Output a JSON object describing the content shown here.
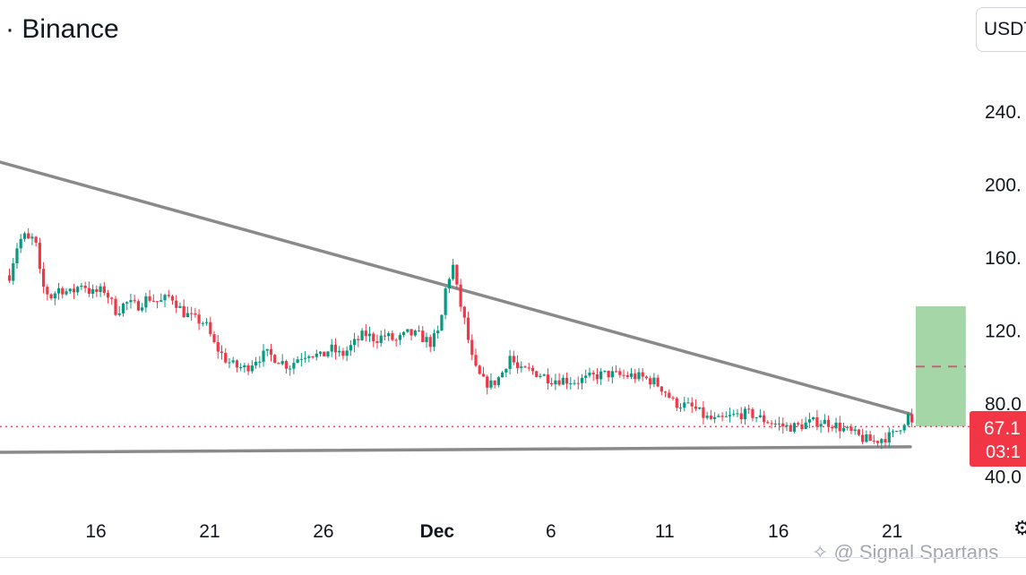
{
  "header": {
    "title": "· Binance",
    "currency": "USDT"
  },
  "price_badge": {
    "price": "67.1",
    "countdown": "03:1"
  },
  "watermark": {
    "text": "@ Signal Spartans"
  },
  "icons": {
    "settings": "gear-icon",
    "watermark_logo": "logo-icon"
  },
  "colors": {
    "up": "#089981",
    "down": "#f23645",
    "trendline": "#8a8a8a",
    "target_zone": "#a5d6a7",
    "current_price_line": "#f23645"
  },
  "chart_data": {
    "type": "candlestick",
    "title": "",
    "xlabel": "",
    "ylabel": "",
    "y_ticks": [
      "240.",
      "200.",
      "160.",
      "120.",
      "80.0",
      "40.0"
    ],
    "y_tick_values": [
      240,
      200,
      160,
      120,
      80,
      40
    ],
    "x_ticks": [
      "16",
      "21",
      "26",
      "Dec",
      "6",
      "11",
      "16",
      "21"
    ],
    "x_tick_days": [
      0,
      5,
      10,
      15,
      20,
      25,
      30,
      35
    ],
    "x_bold": [
      false,
      false,
      false,
      true,
      false,
      false,
      false,
      false
    ],
    "x_tick_dates": [
      "Nov 16",
      "Nov 21",
      "Nov 26",
      "Dec 1",
      "Dec 6",
      "Dec 11",
      "Dec 16",
      "Dec 21"
    ],
    "current_price": 67.1,
    "price_path": [
      [
        -3.8,
        150
      ],
      [
        -3.5,
        165
      ],
      [
        -3.2,
        172
      ],
      [
        -2.9,
        168
      ],
      [
        -2.7,
        172
      ],
      [
        -2.4,
        145
      ],
      [
        -2.0,
        138
      ],
      [
        -1.6,
        143
      ],
      [
        -1.1,
        140
      ],
      [
        -0.6,
        146
      ],
      [
        -0.2,
        140
      ],
      [
        0.4,
        142
      ],
      [
        0.9,
        130
      ],
      [
        1.3,
        135
      ],
      [
        1.8,
        133
      ],
      [
        2.3,
        138
      ],
      [
        2.8,
        135
      ],
      [
        3.3,
        139
      ],
      [
        3.8,
        130
      ],
      [
        4.3,
        126
      ],
      [
        4.8,
        124
      ],
      [
        5.2,
        112
      ],
      [
        5.7,
        104
      ],
      [
        6.1,
        100
      ],
      [
        6.6,
        99
      ],
      [
        7.0,
        104
      ],
      [
        7.5,
        107
      ],
      [
        8.0,
        104
      ],
      [
        8.5,
        100
      ],
      [
        8.9,
        105
      ],
      [
        9.4,
        108
      ],
      [
        9.9,
        105
      ],
      [
        10.3,
        110
      ],
      [
        10.8,
        106
      ],
      [
        11.3,
        112
      ],
      [
        11.8,
        118
      ],
      [
        12.3,
        115
      ],
      [
        12.7,
        117
      ],
      [
        13.2,
        114
      ],
      [
        13.7,
        118
      ],
      [
        14.2,
        117
      ],
      [
        14.7,
        113
      ],
      [
        15.1,
        119
      ],
      [
        15.4,
        145
      ],
      [
        15.7,
        155
      ],
      [
        15.9,
        140
      ],
      [
        16.2,
        125
      ],
      [
        16.6,
        100
      ],
      [
        17.0,
        92
      ],
      [
        17.4,
        90
      ],
      [
        17.8,
        95
      ],
      [
        18.2,
        106
      ],
      [
        18.6,
        97
      ],
      [
        19.0,
        98
      ],
      [
        19.5,
        96
      ],
      [
        20.0,
        93
      ],
      [
        20.5,
        93
      ],
      [
        21.0,
        92
      ],
      [
        21.5,
        93
      ],
      [
        22.0,
        95
      ],
      [
        22.5,
        96
      ],
      [
        23.0,
        95
      ],
      [
        23.5,
        95
      ],
      [
        24.0,
        94
      ],
      [
        24.5,
        92
      ],
      [
        25.0,
        87
      ],
      [
        25.4,
        80
      ],
      [
        25.8,
        79
      ],
      [
        26.3,
        77
      ],
      [
        26.8,
        72
      ],
      [
        27.3,
        70
      ],
      [
        27.8,
        72
      ],
      [
        28.3,
        74
      ],
      [
        28.8,
        74
      ],
      [
        29.3,
        71
      ],
      [
        29.8,
        69
      ],
      [
        30.3,
        67
      ],
      [
        30.8,
        67
      ],
      [
        31.3,
        69
      ],
      [
        31.8,
        70
      ],
      [
        32.3,
        69
      ],
      [
        32.8,
        66
      ],
      [
        33.3,
        63
      ],
      [
        33.8,
        60
      ],
      [
        34.2,
        59
      ],
      [
        34.6,
        61
      ],
      [
        35.0,
        62
      ],
      [
        35.4,
        68
      ],
      [
        35.7,
        73
      ],
      [
        35.9,
        67.1
      ]
    ],
    "annotations": {
      "upper_trendline": {
        "from": [
          -4.2,
          212
        ],
        "to": [
          35.8,
          74
        ]
      },
      "lower_trendline": {
        "from": [
          -4.2,
          53
        ],
        "to": [
          35.8,
          56
        ]
      },
      "target_zone": {
        "x_from": 35.8,
        "x_to": 38.0,
        "y_from": 67.1,
        "y_to": 133
      },
      "target_midline": 100
    }
  }
}
